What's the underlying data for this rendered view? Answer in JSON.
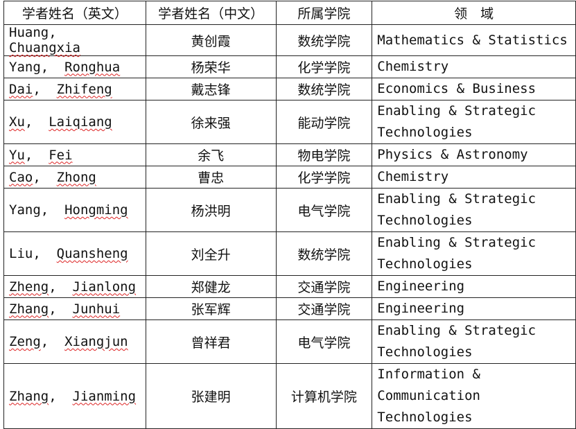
{
  "headers": [
    "学者姓名（英文）",
    "学者姓名（中文）",
    "所属学院",
    "领　域"
  ],
  "rows": [
    {
      "surname": "Huang",
      "given": "Chuangxia",
      "surname_flag": false,
      "given_flag": true,
      "zh": "黄创霞",
      "school": "数统学院",
      "field": "Mathematics & Statistics"
    },
    {
      "surname": "Yang",
      "given": "Ronghua",
      "surname_flag": false,
      "given_flag": true,
      "zh": "杨荣华",
      "school": "化学学院",
      "field": "Chemistry"
    },
    {
      "surname": "Dai",
      "given": "Zhifeng",
      "surname_flag": true,
      "given_flag": true,
      "zh": "戴志锋",
      "school": "数统学院",
      "field": "Economics & Business"
    },
    {
      "surname": "Xu",
      "given": "Laiqiang",
      "surname_flag": true,
      "given_flag": true,
      "zh": "徐来强",
      "school": "能动学院",
      "field": "Enabling & Strategic Technologies"
    },
    {
      "surname": "Yu",
      "given": "Fei",
      "surname_flag": true,
      "given_flag": true,
      "zh": "余飞",
      "school": "物电学院",
      "field": "Physics & Astronomy"
    },
    {
      "surname": "Cao",
      "given": "Zhong",
      "surname_flag": true,
      "given_flag": true,
      "zh": "曹忠",
      "school": "化学学院",
      "field": "Chemistry"
    },
    {
      "surname": "Yang",
      "given": "Hongming",
      "surname_flag": false,
      "given_flag": true,
      "zh": "杨洪明",
      "school": "电气学院",
      "field": "Enabling & Strategic Technologies"
    },
    {
      "surname": "Liu",
      "given": "Quansheng",
      "surname_flag": false,
      "given_flag": true,
      "zh": "刘全升",
      "school": "数统学院",
      "field": "Enabling & Strategic Technologies"
    },
    {
      "surname": "Zheng",
      "given": "Jianlong",
      "surname_flag": true,
      "given_flag": true,
      "zh": "郑健龙",
      "school": "交通学院",
      "field": "Engineering"
    },
    {
      "surname": "Zhang",
      "given": "Junhui",
      "surname_flag": true,
      "given_flag": true,
      "zh": "张军辉",
      "school": "交通学院",
      "field": "Engineering"
    },
    {
      "surname": "Zeng",
      "given": "Xiangjun",
      "surname_flag": true,
      "given_flag": true,
      "zh": "曾祥君",
      "school": "电气学院",
      "field": "Enabling & Strategic Technologies"
    },
    {
      "surname": "Zhang",
      "given": "Jianming",
      "surname_flag": true,
      "given_flag": true,
      "zh": "张建明",
      "school": "计算机学院",
      "field": "Information & Communication Technologies"
    }
  ]
}
